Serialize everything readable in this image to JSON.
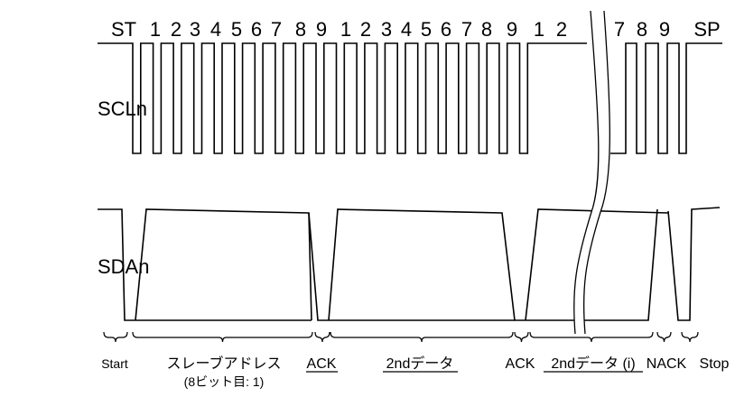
{
  "signals": {
    "scl": "SCLn",
    "sda": "SDAn"
  },
  "bit_labels": {
    "start": "ST",
    "stop": "SP",
    "bits": [
      "1",
      "2",
      "3",
      "4",
      "5",
      "6",
      "7",
      "8",
      "9",
      "1",
      "2",
      "3",
      "4",
      "5",
      "6",
      "7",
      "8",
      "9",
      "1",
      "2",
      "7",
      "8",
      "9"
    ]
  },
  "segments": {
    "start": "Start",
    "slave_address": "スレーブアドレス",
    "slave_address_note": "(8ビット目: 1)",
    "ack1": "ACK",
    "data2": "2ndデータ",
    "ack2": "ACK",
    "data_i": "2ndデータ (i)",
    "nack": "NACK",
    "stop": "Stop"
  }
}
